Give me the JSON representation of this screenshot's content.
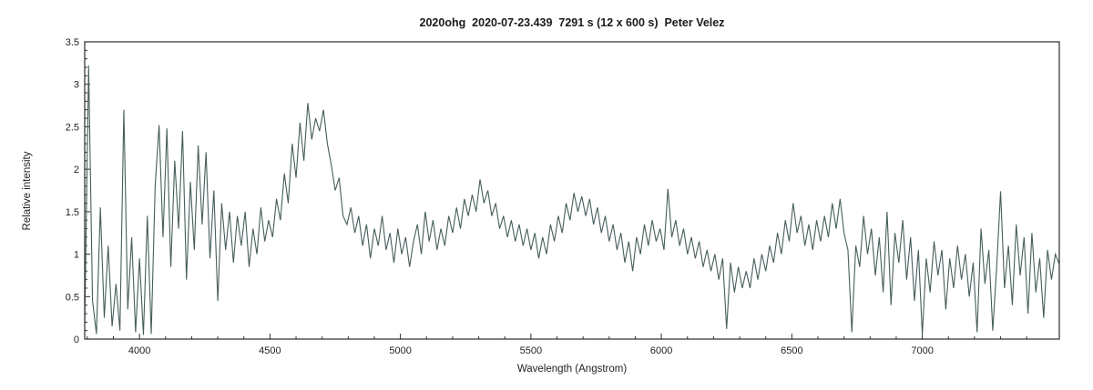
{
  "title": "2020ohg  2020-07-23.439  7291 s (12 x 600 s)  Peter Velez",
  "chart_data": {
    "type": "line",
    "title": "2020ohg  2020-07-23.439  7291 s (12 x 600 s)  Peter Velez",
    "xlabel": "Wavelength (Angstrom)",
    "ylabel": "Relative intensity",
    "xlim": [
      3790,
      7525
    ],
    "ylim": [
      0,
      3.5
    ],
    "x_ticks": [
      4000,
      4500,
      5000,
      5500,
      6000,
      6500,
      7000
    ],
    "x_tick_labels": [
      "4000",
      "4500",
      "5000",
      "5500",
      "6000",
      "6500",
      "7000"
    ],
    "y_ticks": [
      0,
      0.5,
      1,
      1.5,
      2,
      2.5,
      3,
      3.5
    ],
    "y_tick_labels": [
      "0",
      "0.5",
      "1",
      "1.5",
      "2",
      "2.5",
      "3",
      "3.5"
    ],
    "x_minor_step": 100,
    "y_minor_step": 0.1,
    "grid": false,
    "legend_position": "none",
    "line_color": "#465e5c",
    "axis_color": "#2b2b2b",
    "series": [
      {
        "name": "spectrum",
        "x_start": 3790,
        "x_step": 15,
        "values": [
          0.18,
          3.22,
          0.45,
          0.06,
          1.55,
          0.25,
          1.1,
          0.15,
          0.65,
          0.1,
          2.7,
          0.35,
          1.2,
          0.08,
          0.95,
          0.05,
          1.45,
          0.06,
          1.8,
          2.52,
          1.2,
          2.48,
          0.85,
          2.1,
          1.3,
          2.45,
          0.7,
          1.85,
          1.05,
          2.28,
          1.35,
          2.2,
          0.95,
          1.75,
          0.45,
          1.6,
          1.05,
          1.5,
          0.9,
          1.45,
          1.1,
          1.5,
          0.85,
          1.3,
          1.0,
          1.55,
          1.15,
          1.4,
          1.2,
          1.65,
          1.4,
          1.95,
          1.6,
          2.3,
          1.9,
          2.55,
          2.1,
          2.78,
          2.35,
          2.6,
          2.45,
          2.7,
          2.3,
          2.05,
          1.75,
          1.9,
          1.45,
          1.35,
          1.55,
          1.25,
          1.45,
          1.1,
          1.35,
          0.95,
          1.3,
          1.1,
          1.45,
          1.05,
          1.25,
          0.9,
          1.3,
          1.0,
          1.2,
          0.85,
          1.15,
          1.35,
          1.0,
          1.5,
          1.15,
          1.4,
          1.05,
          1.3,
          1.1,
          1.45,
          1.25,
          1.55,
          1.3,
          1.65,
          1.45,
          1.7,
          1.5,
          1.88,
          1.6,
          1.75,
          1.45,
          1.6,
          1.3,
          1.45,
          1.2,
          1.4,
          1.15,
          1.35,
          1.1,
          1.3,
          1.05,
          1.25,
          0.95,
          1.2,
          1.0,
          1.35,
          1.15,
          1.45,
          1.25,
          1.6,
          1.4,
          1.72,
          1.5,
          1.68,
          1.45,
          1.65,
          1.35,
          1.55,
          1.25,
          1.45,
          1.15,
          1.35,
          1.05,
          1.25,
          0.9,
          1.15,
          0.8,
          1.2,
          1.0,
          1.35,
          1.1,
          1.4,
          1.15,
          1.3,
          1.05,
          1.77,
          1.2,
          1.4,
          1.1,
          1.3,
          1.0,
          1.2,
          0.95,
          1.15,
          0.85,
          1.05,
          0.8,
          1.0,
          0.7,
          0.95,
          0.12,
          0.9,
          0.55,
          0.85,
          0.6,
          0.8,
          0.6,
          0.95,
          0.7,
          1.0,
          0.8,
          1.1,
          0.9,
          1.25,
          1.0,
          1.4,
          1.15,
          1.6,
          1.25,
          1.45,
          1.1,
          1.35,
          1.05,
          1.4,
          1.15,
          1.45,
          1.2,
          1.6,
          1.3,
          1.65,
          1.25,
          1.05,
          0.08,
          1.1,
          0.85,
          1.45,
          1.0,
          1.3,
          0.75,
          1.2,
          0.55,
          1.5,
          0.4,
          1.25,
          0.9,
          1.4,
          0.7,
          1.2,
          0.45,
          1.05,
          0.05,
          0.95,
          0.55,
          1.15,
          0.75,
          1.05,
          0.35,
          0.95,
          0.6,
          1.1,
          0.7,
          1.0,
          0.5,
          0.9,
          0.08,
          1.3,
          0.65,
          1.05,
          0.1,
          0.85,
          1.74,
          0.6,
          1.1,
          0.4,
          1.35,
          0.75,
          1.2,
          0.3,
          1.25,
          0.55,
          0.95,
          0.25,
          1.05,
          0.7,
          1.0,
          0.88
        ]
      }
    ]
  }
}
